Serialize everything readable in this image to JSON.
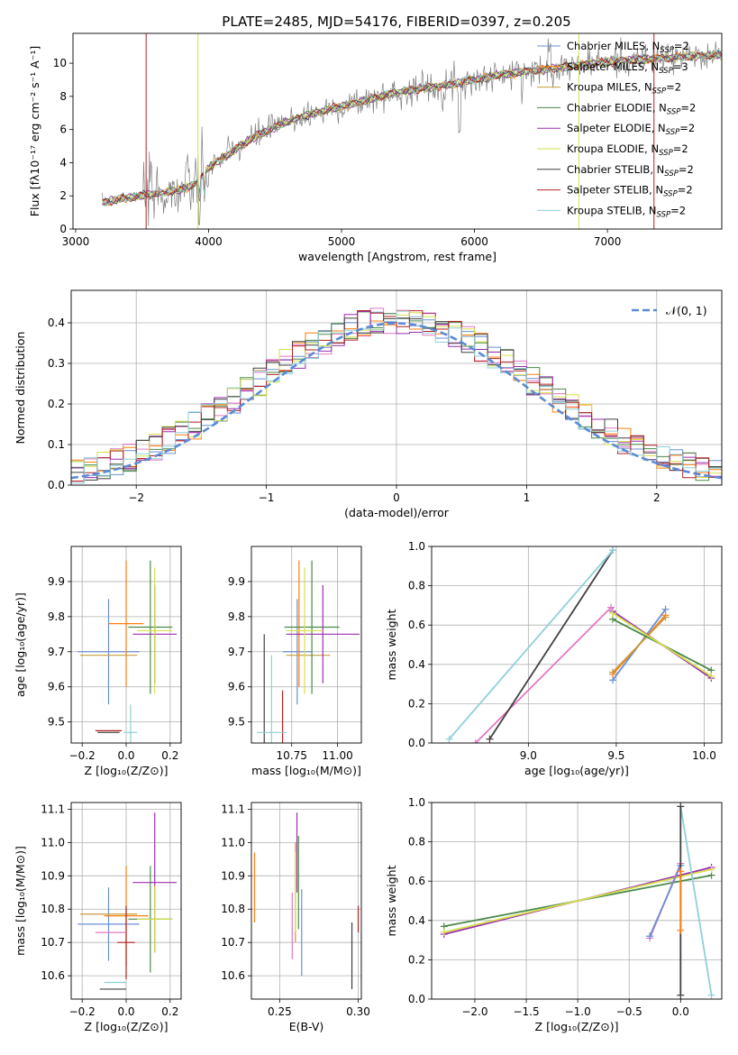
{
  "figure_title": "PLATE=2485, MJD=54176, FIBERID=0397, z=0.205",
  "colors": [
    "#6a8fd4",
    "#ff7f0e",
    "#c79b3a",
    "#4a8a4a",
    "#9b2fae",
    "#d6e04a",
    "#404040",
    "#b22222",
    "#8fd0d8"
  ],
  "gray": "#808080",
  "chart_data": [
    {
      "id": "spectrum",
      "type": "line",
      "title": "PLATE=2485, MJD=54176, FIBERID=0397, z=0.205",
      "xlabel": "wavelength [Angstrom, rest frame]",
      "ylabel": "Flux [fλ10⁻¹⁷ erg cm⁻² s⁻¹ A⁻¹]",
      "xlim": [
        2980,
        7860
      ],
      "ylim": [
        0,
        11.8
      ],
      "xticks": [
        3000,
        4000,
        5000,
        6000,
        7000
      ],
      "yticks": [
        0,
        2,
        4,
        6,
        8,
        10
      ],
      "grid": false,
      "legend_position": "top-right",
      "series": [
        {
          "name": "Chabrier MILES, N_SSP=2"
        },
        {
          "name": "Salpeter MILES, N_SSP=3"
        },
        {
          "name": "Kroupa MILES, N_SSP=2"
        },
        {
          "name": "Chabrier ELODIE, N_SSP=2"
        },
        {
          "name": "Salpeter ELODIE, N_SSP=2"
        },
        {
          "name": "Kroupa ELODIE, N_SSP=2"
        },
        {
          "name": "Chabrier STELIB, N_SSP=2"
        },
        {
          "name": "Salpeter STELIB, N_SSP=2"
        },
        {
          "name": "Kroupa STELIB, N_SSP=2"
        }
      ],
      "continuum": {
        "x": [
          3200,
          3400,
          3600,
          3800,
          3900,
          4000,
          4200,
          4400,
          4600,
          4800,
          5000,
          5200,
          5400,
          5600,
          5800,
          6000,
          6200,
          6400,
          6600,
          6800,
          7000,
          7200,
          7400,
          7600,
          7800
        ],
        "y": [
          1.6,
          1.9,
          2.1,
          2.4,
          2.7,
          3.7,
          4.8,
          5.8,
          6.5,
          7.0,
          7.4,
          7.8,
          8.2,
          8.5,
          8.7,
          9.0,
          9.3,
          9.5,
          9.7,
          9.9,
          10.1,
          10.2,
          10.3,
          10.4,
          10.5
        ]
      }
    },
    {
      "id": "residuals",
      "type": "step",
      "xlabel": "(data-model)/error",
      "ylabel": "Normed distribution",
      "xlim": [
        -2.5,
        2.5
      ],
      "ylim": [
        0,
        0.48
      ],
      "xticks": [
        -2,
        -1,
        0,
        1,
        2
      ],
      "yticks": [
        0.0,
        0.1,
        0.2,
        0.3,
        0.4
      ],
      "grid": true,
      "bin_width": 0.1,
      "legend": [
        {
          "name": "𝒩(0, 1)",
          "style": "dashed"
        }
      ],
      "legend_position": "top-right",
      "gaussian": {
        "mean": 0,
        "sigma": 1
      }
    },
    {
      "id": "age-vs-Z",
      "type": "errorbar",
      "xlabel": "Z [log₁₀(Z/Z⊙)]",
      "ylabel": "age  [log₁₀(age/yr)]",
      "xlim": [
        -0.25,
        0.25
      ],
      "ylim": [
        9.44,
        10.0
      ],
      "xticks": [
        -0.2,
        0.0,
        0.2
      ],
      "yticks": [
        9.5,
        9.6,
        9.7,
        9.8,
        9.9
      ],
      "grid": true,
      "points": [
        {
          "c": 0,
          "x": -0.08,
          "xerr": 0.14,
          "y": 9.7,
          "yerr": 0.15
        },
        {
          "c": 1,
          "x": 0.0,
          "xerr": 0.08,
          "y": 9.78,
          "yerr": 0.18
        },
        {
          "c": 2,
          "x": -0.08,
          "xerr": 0.13,
          "y": 9.69,
          "yerr": 0.0
        },
        {
          "c": 3,
          "x": 0.11,
          "xerr": 0.1,
          "y": 9.77,
          "yerr": 0.19
        },
        {
          "c": 4,
          "x": 0.13,
          "xerr": 0.1,
          "y": 9.75,
          "yerr": 0.14
        },
        {
          "c": 5,
          "x": 0.13,
          "xerr": 0.08,
          "y": 9.76,
          "yerr": 0.18
        },
        {
          "c": 6,
          "x": -0.08,
          "xerr": 0.05,
          "y": 9.47,
          "yerr": 0.0
        },
        {
          "c": 7,
          "x": -0.08,
          "xerr": 0.06,
          "y": 9.475,
          "yerr": 0.0
        },
        {
          "c": 8,
          "x": 0.02,
          "xerr": 0.03,
          "y": 9.47,
          "yerr": 0.08
        }
      ]
    },
    {
      "id": "age-vs-mass",
      "type": "errorbar",
      "xlabel": "mass [log₁₀(M/M⊙)]",
      "ylabel": "",
      "xlim": [
        10.53,
        11.13
      ],
      "ylim": [
        9.44,
        10.0
      ],
      "xticks": [
        10.75,
        11.0
      ],
      "yticks": [
        9.5,
        9.6,
        9.7,
        9.8,
        9.9
      ],
      "grid": true,
      "points": [
        {
          "c": 0,
          "x": 10.78,
          "xerr": 0.08,
          "y": 9.7,
          "yerr": 0.15
        },
        {
          "c": 1,
          "x": 10.79,
          "xerr": 0.0,
          "y": 9.78,
          "yerr": 0.18
        },
        {
          "c": 2,
          "x": 10.84,
          "xerr": 0.12,
          "y": 9.69,
          "yerr": 0.0
        },
        {
          "c": 3,
          "x": 10.86,
          "xerr": 0.15,
          "y": 9.77,
          "yerr": 0.19
        },
        {
          "c": 4,
          "x": 10.92,
          "xerr": 0.2,
          "y": 9.75,
          "yerr": 0.14
        },
        {
          "c": 5,
          "x": 10.82,
          "xerr": 0.1,
          "y": 9.76,
          "yerr": 0.18
        },
        {
          "c": 6,
          "x": 10.6,
          "xerr": 0.0,
          "y": 9.47,
          "yerr": 0.28
        },
        {
          "c": 7,
          "x": 10.7,
          "xerr": 0.0,
          "y": 9.47,
          "yerr": 0.12
        },
        {
          "c": 8,
          "x": 10.64,
          "xerr": 0.08,
          "y": 9.47,
          "yerr": 0.22
        }
      ]
    },
    {
      "id": "weight-vs-age",
      "type": "line",
      "xlabel": "age  [log₁₀(age/yr)]",
      "ylabel": "mass weight",
      "xlim": [
        8.45,
        10.1
      ],
      "ylim": [
        0,
        1.0
      ],
      "xticks": [
        9.0,
        9.5,
        10.0
      ],
      "yticks": [
        0.0,
        0.2,
        0.4,
        0.6,
        0.8,
        1.0
      ],
      "grid": true,
      "series": [
        {
          "c": 9,
          "x": [
            8.7,
            9.47
          ],
          "y": [
            0.0,
            0.69
          ]
        },
        {
          "c": 6,
          "x": [
            8.78,
            9.48
          ],
          "y": [
            0.02,
            0.98
          ]
        },
        {
          "c": 8,
          "x": [
            8.55,
            9.48
          ],
          "y": [
            0.02,
            0.98
          ]
        },
        {
          "c": 0,
          "x": [
            9.48,
            9.78
          ],
          "y": [
            0.32,
            0.68
          ]
        },
        {
          "c": 1,
          "x": [
            9.48,
            9.78
          ],
          "y": [
            0.35,
            0.65
          ]
        },
        {
          "c": 2,
          "x": [
            9.48,
            9.78
          ],
          "y": [
            0.36,
            0.64
          ]
        },
        {
          "c": 3,
          "x": [
            9.48,
            10.04
          ],
          "y": [
            0.63,
            0.37
          ]
        },
        {
          "c": 4,
          "x": [
            9.48,
            10.04
          ],
          "y": [
            0.67,
            0.33
          ]
        },
        {
          "c": 5,
          "x": [
            9.48,
            10.04
          ],
          "y": [
            0.66,
            0.34
          ]
        }
      ]
    },
    {
      "id": "mass-vs-Z",
      "type": "errorbar",
      "xlabel": "Z [log₁₀(Z/Z⊙)]",
      "ylabel": "mass [log₁₀(M/M⊙)]",
      "xlim": [
        -0.25,
        0.25
      ],
      "ylim": [
        10.53,
        11.12
      ],
      "xticks": [
        -0.2,
        0.0,
        0.2
      ],
      "yticks": [
        10.6,
        10.7,
        10.8,
        10.9,
        11.0,
        11.1
      ],
      "grid": true,
      "points": [
        {
          "c": 0,
          "x": -0.08,
          "xerr": 0.14,
          "y": 10.755,
          "yerr": 0.11
        },
        {
          "c": 1,
          "x": 0.0,
          "xerr": 0.1,
          "y": 10.78,
          "yerr": 0.15
        },
        {
          "c": 2,
          "x": -0.08,
          "xerr": 0.13,
          "y": 10.785,
          "yerr": 0.0
        },
        {
          "c": 3,
          "x": 0.11,
          "xerr": 0.1,
          "y": 10.77,
          "yerr": 0.16
        },
        {
          "c": 4,
          "x": 0.13,
          "xerr": 0.1,
          "y": 10.88,
          "yerr": 0.21
        },
        {
          "c": 5,
          "x": 0.13,
          "xerr": 0.08,
          "y": 10.77,
          "yerr": 0.1
        },
        {
          "c": 6,
          "x": -0.06,
          "xerr": 0.06,
          "y": 10.56,
          "yerr": 0.0
        },
        {
          "c": 7,
          "x": 0.0,
          "xerr": 0.04,
          "y": 10.7,
          "yerr": 0.11
        },
        {
          "c": 8,
          "x": -0.05,
          "xerr": 0.05,
          "y": 10.58,
          "yerr": 0.0
        },
        {
          "c": 9,
          "x": -0.07,
          "xerr": 0.07,
          "y": 10.73,
          "yerr": 0.0
        }
      ]
    },
    {
      "id": "mass-vs-ebv",
      "type": "errorbar",
      "xlabel": "E(B-V)",
      "ylabel": "",
      "xlim": [
        0.232,
        0.302
      ],
      "ylim": [
        10.53,
        11.12
      ],
      "xticks": [
        0.25,
        0.3
      ],
      "yticks": [
        10.6,
        10.7,
        10.8,
        10.9,
        11.0,
        11.1
      ],
      "grid": true,
      "points": [
        {
          "c": 0,
          "x": 0.264,
          "xerr": 0.0,
          "y": 10.73,
          "yerr": 0.13
        },
        {
          "c": 1,
          "x": 0.234,
          "xerr": 0.0,
          "y": 10.865,
          "yerr": 0.105
        },
        {
          "c": 2,
          "x": 0.26,
          "xerr": 0.0,
          "y": 10.85,
          "yerr": 0.15
        },
        {
          "c": 3,
          "x": 0.262,
          "xerr": 0.0,
          "y": 10.88,
          "yerr": 0.14
        },
        {
          "c": 4,
          "x": 0.261,
          "xerr": 0.0,
          "y": 10.97,
          "yerr": 0.12
        },
        {
          "c": 5,
          "x": 0.26,
          "xerr": 0.0,
          "y": 10.85,
          "yerr": 0.12
        },
        {
          "c": 6,
          "x": 0.296,
          "xerr": 0.0,
          "y": 10.66,
          "yerr": 0.1
        },
        {
          "c": 7,
          "x": 0.3,
          "xerr": 0.0,
          "y": 10.77,
          "yerr": 0.04
        },
        {
          "c": 8,
          "x": 0.302,
          "xerr": 0.0,
          "y": 10.65,
          "yerr": 0.08
        },
        {
          "c": 9,
          "x": 0.258,
          "xerr": 0.0,
          "y": 10.75,
          "yerr": 0.1
        }
      ]
    },
    {
      "id": "weight-vs-Z",
      "type": "line",
      "xlabel": "Z [log₁₀(Z/Z⊙)]",
      "ylabel": "mass weight",
      "xlim": [
        -2.42,
        0.4
      ],
      "ylim": [
        0,
        1.0
      ],
      "xticks": [
        -2.0,
        -1.5,
        -1.0,
        -0.5,
        0.0
      ],
      "yticks": [
        0.0,
        0.2,
        0.4,
        0.6,
        0.8,
        1.0
      ],
      "grid": true,
      "series": [
        {
          "c": 3,
          "x": [
            -2.3,
            0.3
          ],
          "y": [
            0.37,
            0.63
          ]
        },
        {
          "c": 4,
          "x": [
            -2.3,
            0.3
          ],
          "y": [
            0.33,
            0.67
          ]
        },
        {
          "c": 5,
          "x": [
            -2.3,
            0.3
          ],
          "y": [
            0.34,
            0.66
          ]
        },
        {
          "c": 9,
          "x": [
            -0.3,
            0.0
          ],
          "y": [
            0.31,
            0.69
          ]
        },
        {
          "c": 0,
          "x": [
            -0.3,
            0.0
          ],
          "y": [
            0.32,
            0.68
          ]
        },
        {
          "c": 8,
          "x": [
            0.0,
            0.3
          ],
          "y": [
            0.98,
            0.02
          ]
        },
        {
          "c": 6,
          "x": [
            0.0,
            0.0
          ],
          "y": [
            0.02,
            0.98
          ]
        },
        {
          "c": 1,
          "x": [
            0.0,
            0.0
          ],
          "y": [
            0.35,
            0.65
          ]
        }
      ]
    }
  ]
}
